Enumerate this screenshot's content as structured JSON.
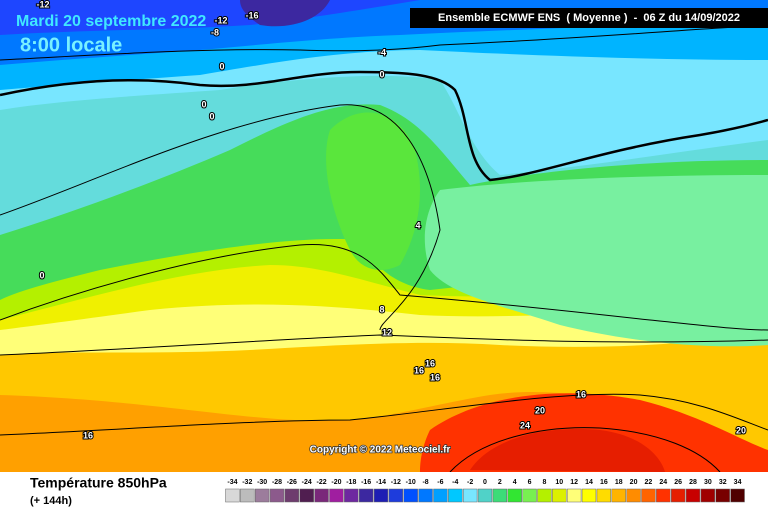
{
  "header": {
    "date": "Mardi 20 septembre 2022",
    "time": "8:00 locale",
    "model": "Ensemble ECMWF ENS  ( Moyenne )  -  06 Z du 14/09/2022"
  },
  "map": {
    "contour_labels": [
      -12,
      -12,
      -16,
      -8,
      -4,
      0,
      0,
      0,
      0,
      0,
      4,
      8,
      12,
      16,
      16,
      16,
      16,
      20,
      24,
      20,
      16
    ],
    "copyright": "Copyright © 2022 Meteociel.fr"
  },
  "footer": {
    "title": "Température 850hPa",
    "lead": "(+ 144h)"
  },
  "legend": {
    "values": [
      -34,
      -32,
      -30,
      -28,
      -26,
      -24,
      -22,
      -20,
      -18,
      -16,
      -14,
      -12,
      -10,
      -8,
      -6,
      -4,
      -2,
      0,
      2,
      4,
      6,
      8,
      10,
      12,
      14,
      16,
      18,
      20,
      22,
      24,
      26,
      28,
      30,
      32,
      34
    ],
    "colors": [
      "#d8d8d8",
      "#bcbcbc",
      "#9c7c9c",
      "#8c5a8c",
      "#6e3c6e",
      "#501e50",
      "#7a287a",
      "#a01ea0",
      "#6e28a0",
      "#3c28a0",
      "#1e1eb4",
      "#1e3cdc",
      "#0050ff",
      "#0078ff",
      "#00a0ff",
      "#00c8ff",
      "#78e6ff",
      "#50d2c8",
      "#3cdc78",
      "#32e632",
      "#78f050",
      "#b4f000",
      "#dcf000",
      "#ffff78",
      "#ffff00",
      "#ffdc00",
      "#ffb400",
      "#ff8c00",
      "#ff6400",
      "#ff3200",
      "#e61e00",
      "#c80000",
      "#a00000",
      "#780000",
      "#500000"
    ]
  }
}
